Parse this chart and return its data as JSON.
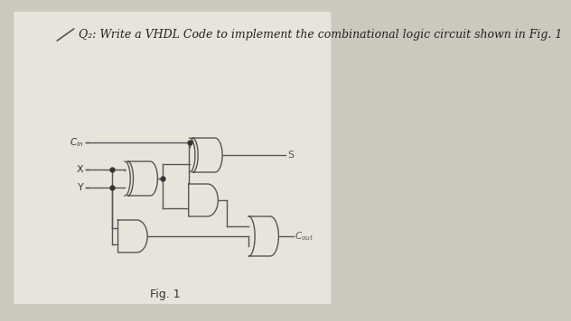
{
  "title": "Q₂: Write a VHDL Code to implement the combinational logic circuit shown in Fig. 1",
  "fig_label": "Fig. 1",
  "bg_color": "#ccc8be",
  "paper_color": "#e8e4dc",
  "gate_fill": "#e8e4dc",
  "line_color": "#555555",
  "dot_color": "#333333",
  "title_fontsize": 9,
  "fig_label_fontsize": 9,
  "lw": 1.0
}
